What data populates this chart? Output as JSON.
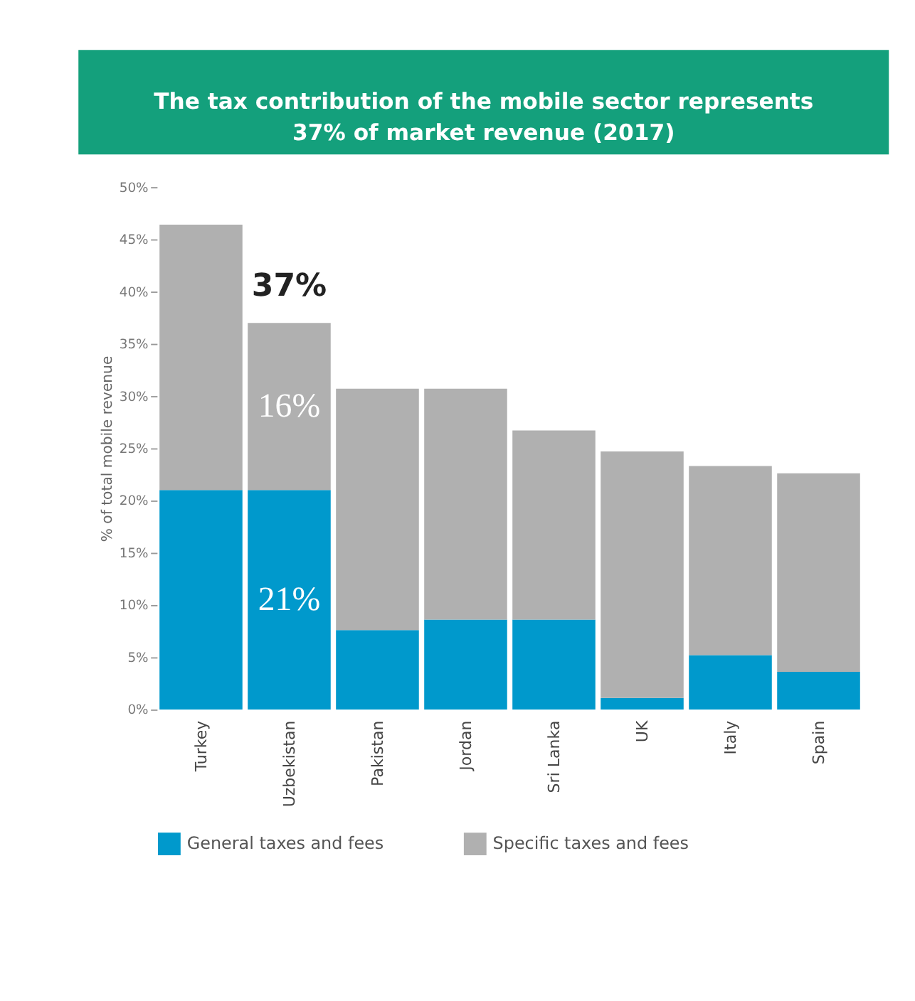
{
  "chart_data": {
    "type": "bar",
    "title": "The tax contribution of the mobile sector represents\n37% of market revenue (2017)",
    "ylabel": "% of total mobile revenue",
    "categories": [
      "Turkey",
      "Uzbekistan",
      "Pakistan",
      "Jordan",
      "Sri Lanka",
      "UK",
      "Italy",
      "Spain"
    ],
    "stacked": true,
    "series": [
      {
        "name": "General taxes and fees",
        "color": "#0099cc",
        "values": [
          21.0,
          21,
          7.6,
          8.6,
          8.6,
          1.1,
          5.2,
          3.6
        ],
        "value_labels": [
          null,
          "21%",
          null,
          null,
          null,
          null,
          null,
          null
        ]
      },
      {
        "name": "Specific taxes and fees",
        "color": "#b0b0b0",
        "values": [
          25.4,
          16,
          23.1,
          22.1,
          18.1,
          23.6,
          18.1,
          19.0
        ],
        "value_labels": [
          null,
          "16%",
          null,
          null,
          null,
          null,
          null,
          null
        ]
      }
    ],
    "totals": [
      null,
      "37%",
      null,
      null,
      null,
      null,
      null,
      null
    ],
    "ylim": [
      0,
      50
    ],
    "yticks": [
      {
        "value": 0,
        "label": "0%"
      },
      {
        "value": 5,
        "label": "5%"
      },
      {
        "value": 10,
        "label": "10%"
      },
      {
        "value": 15,
        "label": "15%"
      },
      {
        "value": 20,
        "label": "20%"
      },
      {
        "value": 25,
        "label": "25%"
      },
      {
        "value": 30,
        "label": "30%"
      },
      {
        "value": 35,
        "label": "35%"
      },
      {
        "value": 40,
        "label": "40%"
      },
      {
        "value": 45,
        "label": "45%"
      },
      {
        "value": 50,
        "label": "50%"
      }
    ],
    "grid": false,
    "legend": "bottom"
  }
}
